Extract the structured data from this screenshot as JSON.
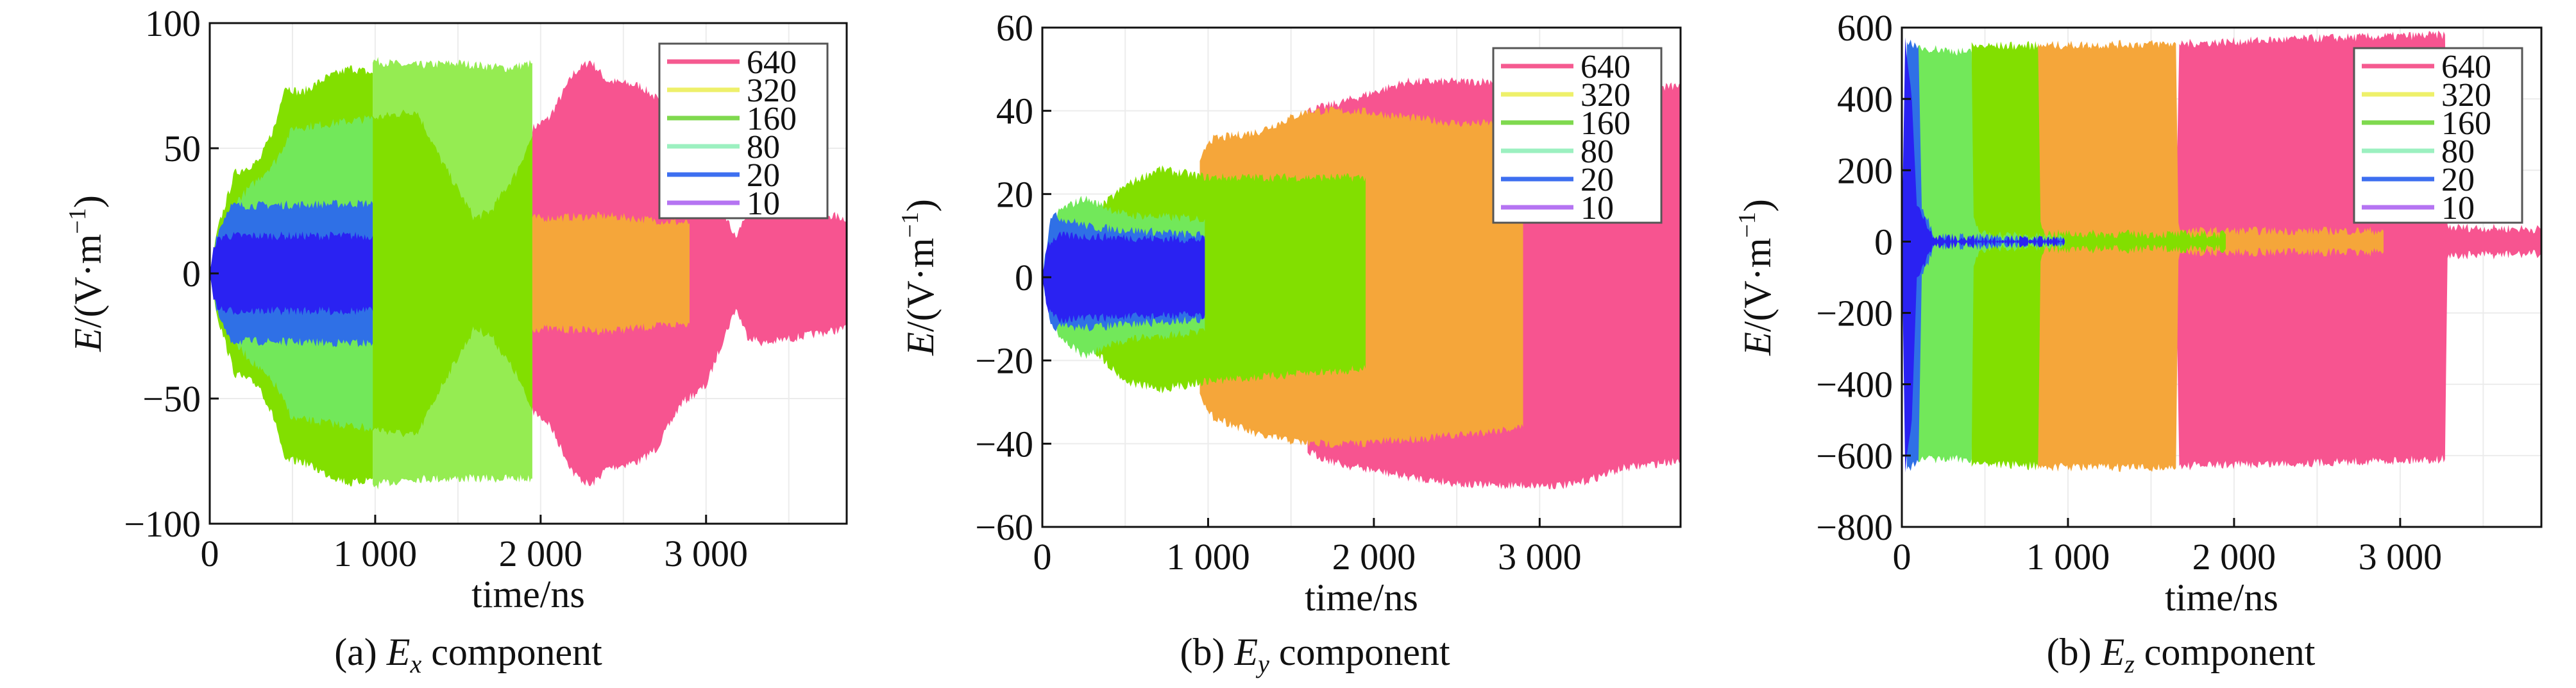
{
  "legend_labels": [
    "640",
    "320",
    "160",
    "80",
    "20",
    "10"
  ],
  "legend_colors": [
    "#f55a90",
    "#eef06a",
    "#7fd94e",
    "#9cf0c0",
    "#3d6ff0",
    "#b574f2"
  ],
  "chart_data": [
    {
      "type": "area",
      "id": "ex",
      "caption_prefix": "(a) ",
      "caption_var": "E",
      "caption_sub": "x",
      "caption_suffix": " component",
      "xlabel": "time/ns",
      "ylabel_var": "E",
      "ylabel_rest": "/(V·m",
      "ylabel_sup": "−1",
      "ylabel_close": ")",
      "xlim": [
        0,
        3850
      ],
      "ylim": [
        -100,
        100
      ],
      "xticks": [
        0,
        1000,
        2000,
        3000
      ],
      "xtick_labels": [
        "0",
        "1 000",
        "2 000",
        "3 000"
      ],
      "yticks": [
        -100,
        -50,
        0,
        50,
        100
      ],
      "ytick_labels": [
        "−100",
        "−50",
        "0",
        "50",
        "100"
      ],
      "legend_position": "top-right",
      "series": [
        {
          "name": "640",
          "color": "#f75490",
          "points": [
            [
              1950,
              58,
              -55
            ],
            [
              2050,
              62,
              -60
            ],
            [
              2200,
              80,
              -80
            ],
            [
              2300,
              85,
              -85
            ],
            [
              2400,
              77,
              -78
            ],
            [
              2600,
              75,
              -75
            ],
            [
              2700,
              70,
              -70
            ],
            [
              2850,
              50,
              -52
            ],
            [
              3000,
              45,
              -45
            ],
            [
              3100,
              25,
              -27
            ],
            [
              3180,
              14,
              -14
            ],
            [
              3250,
              25,
              -25
            ],
            [
              3350,
              28,
              -28
            ],
            [
              3850,
              22,
              -22
            ]
          ]
        },
        {
          "name": "80",
          "color": "#95ec52",
          "points": [
            [
              985,
              85,
              -85
            ],
            [
              1200,
              83,
              -82
            ],
            [
              1500,
              84,
              -82
            ],
            [
              1800,
              82,
              -82
            ],
            [
              1950,
              84,
              -82
            ]
          ]
        },
        {
          "name": "160",
          "color": "#82df00",
          "points": [
            [
              0,
              0,
              0
            ],
            [
              50,
              18,
              -18
            ],
            [
              150,
              40,
              -40
            ],
            [
              300,
              45,
              -45
            ],
            [
              400,
              60,
              -60
            ],
            [
              450,
              75,
              -75
            ],
            [
              550,
              72,
              -75
            ],
            [
              700,
              78,
              -80
            ],
            [
              850,
              82,
              -84
            ],
            [
              985,
              80,
              -82
            ]
          ]
        },
        {
          "name": "160",
          "color": "#82df00",
          "points": [
            [
              985,
              62,
              -62
            ],
            [
              1250,
              65,
              -65
            ],
            [
              1400,
              45,
              -45
            ],
            [
              1600,
              22,
              -22
            ],
            [
              1700,
              25,
              -25
            ],
            [
              1850,
              40,
              -40
            ],
            [
              1950,
              55,
              -55
            ]
          ]
        },
        {
          "name": "320",
          "color": "#f5a63a",
          "points": [
            [
              1950,
              22,
              -22
            ],
            [
              2400,
              23,
              -23
            ],
            [
              2900,
              20,
              -20
            ]
          ]
        },
        {
          "name": "80",
          "color": "#72e85a",
          "points": [
            [
              0,
              0,
              0
            ],
            [
              50,
              15,
              -15
            ],
            [
              150,
              28,
              -28
            ],
            [
              400,
              45,
              -45
            ],
            [
              500,
              58,
              -58
            ],
            [
              985,
              62,
              -62
            ]
          ]
        },
        {
          "name": "20",
          "color": "#2f70e6",
          "points": [
            [
              0,
              0,
              0
            ],
            [
              40,
              15,
              -15
            ],
            [
              120,
              27,
              -27
            ],
            [
              985,
              28,
              -28
            ]
          ]
        },
        {
          "name": "10",
          "color": "#2a22f2",
          "points": [
            [
              0,
              0,
              0
            ],
            [
              30,
              12,
              -12
            ],
            [
              80,
              15,
              -15
            ],
            [
              985,
              15,
              -15
            ]
          ]
        }
      ]
    },
    {
      "type": "area",
      "id": "ey",
      "caption_prefix": "(b) ",
      "caption_var": "E",
      "caption_sub": "y",
      "caption_suffix": " component",
      "xlabel": "time/ns",
      "ylabel_var": "E",
      "ylabel_rest": "/(V·m",
      "ylabel_sup": "−1",
      "ylabel_close": ")",
      "xlim": [
        0,
        3850
      ],
      "ylim": [
        -60,
        60
      ],
      "xticks": [
        0,
        1000,
        2000,
        3000
      ],
      "xtick_labels": [
        "0",
        "1 000",
        "2 000",
        "3 000"
      ],
      "yticks": [
        -60,
        -40,
        -20,
        0,
        20,
        40,
        60
      ],
      "ytick_labels": [
        "−60",
        "−40",
        "−20",
        "0",
        "20",
        "40",
        "60"
      ],
      "legend_position": "top-right",
      "series": [
        {
          "name": "640",
          "color": "#f75490",
          "points": [
            [
              1600,
              40,
              -42
            ],
            [
              1800,
              42,
              -45
            ],
            [
              2200,
              47,
              -48
            ],
            [
              2600,
              47,
              -50
            ],
            [
              3000,
              48,
              -50
            ],
            [
              3200,
              47,
              -50
            ],
            [
              3500,
              45,
              -46
            ],
            [
              3850,
              46,
              -44
            ]
          ]
        },
        {
          "name": "320",
          "color": "#f5a63a",
          "points": [
            [
              950,
              27,
              -27
            ],
            [
              1000,
              33,
              -33
            ],
            [
              1300,
              35,
              -38
            ],
            [
              1600,
              40,
              -40
            ],
            [
              1900,
              40,
              -40
            ],
            [
              2500,
              37,
              -38
            ],
            [
              2900,
              37,
              -36
            ]
          ]
        },
        {
          "name": "160",
          "color": "#82df00",
          "points": [
            [
              0,
              0,
              0
            ],
            [
              100,
              13,
              -12
            ],
            [
              300,
              15,
              -17
            ],
            [
              500,
              22,
              -25
            ],
            [
              700,
              26,
              -27
            ],
            [
              1000,
              24,
              -25
            ],
            [
              1950,
              24,
              -22
            ]
          ]
        },
        {
          "name": "80",
          "color": "#72e85a",
          "points": [
            [
              0,
              0,
              0
            ],
            [
              100,
              16,
              -14
            ],
            [
              250,
              19,
              -19
            ],
            [
              500,
              15,
              -15
            ],
            [
              980,
              14,
              -13
            ]
          ]
        },
        {
          "name": "20",
          "color": "#2f70e6",
          "points": [
            [
              0,
              0,
              0
            ],
            [
              50,
              15,
              -12
            ],
            [
              300,
              12,
              -12
            ],
            [
              980,
              10,
              -10
            ]
          ]
        },
        {
          "name": "10",
          "color": "#2a22f2",
          "points": [
            [
              0,
              0,
              0
            ],
            [
              30,
              8,
              -8
            ],
            [
              100,
              10,
              -10
            ],
            [
              980,
              9,
              -9
            ]
          ]
        }
      ]
    },
    {
      "type": "area",
      "id": "ez",
      "caption_prefix": "(b) ",
      "caption_var": "E",
      "caption_sub": "z",
      "caption_suffix": " component",
      "xlabel": "time/ns",
      "ylabel_var": "E",
      "ylabel_rest": "/(V·m",
      "ylabel_sup": "−1",
      "ylabel_close": ")",
      "xlim": [
        0,
        3850
      ],
      "ylim": [
        -800,
        600
      ],
      "xticks": [
        0,
        1000,
        2000,
        3000
      ],
      "xtick_labels": [
        "0",
        "1 000",
        "2 000",
        "3 000"
      ],
      "yticks": [
        -800,
        -600,
        -400,
        -200,
        0,
        200,
        400,
        600
      ],
      "ytick_labels": [
        "−800",
        "−600",
        "−400",
        "−200",
        "0",
        "200",
        "400",
        "600"
      ],
      "legend_position": "top-right",
      "series": [
        {
          "name": "640",
          "color": "#f75490",
          "points": [
            [
              1650,
              45,
              -45
            ],
            [
              1670,
              555,
              -630
            ],
            [
              2500,
              570,
              -620
            ],
            [
              3270,
              580,
              -610
            ],
            [
              3285,
              40,
              -40
            ],
            [
              3850,
              35,
              -35
            ]
          ]
        },
        {
          "name": "320",
          "color": "#f5a63a",
          "points": [
            [
              820,
              550,
              -632
            ],
            [
              1650,
              555,
              -635
            ],
            [
              1665,
              45,
              -45
            ],
            [
              1700,
              30,
              -30
            ],
            [
              2900,
              30,
              -30
            ]
          ]
        },
        {
          "name": "160",
          "color": "#82df00",
          "points": [
            [
              420,
              548,
              -620
            ],
            [
              820,
              550,
              -630
            ],
            [
              835,
              50,
              -50
            ],
            [
              870,
              22,
              -22
            ],
            [
              1950,
              20,
              -20
            ]
          ]
        },
        {
          "name": "80",
          "color": "#72e85a",
          "points": [
            [
              100,
              545,
              -612
            ],
            [
              420,
              530,
              -610
            ],
            [
              432,
              60,
              -60
            ],
            [
              480,
              22,
              -22
            ],
            [
              980,
              10,
              -10
            ]
          ]
        },
        {
          "name": "20",
          "color": "#2f70e6",
          "points": [
            [
              30,
              560,
              -640
            ],
            [
              100,
              550,
              -620
            ],
            [
              120,
              100,
              -100
            ],
            [
              200,
              15,
              -15
            ],
            [
              980,
              5,
              -5
            ]
          ]
        },
        {
          "name": "10",
          "color": "#2a22f2",
          "points": [
            [
              0,
              0,
              0
            ],
            [
              20,
              570,
              -645
            ],
            [
              60,
              400,
              -500
            ],
            [
              90,
              100,
              -100
            ],
            [
              200,
              10,
              -10
            ],
            [
              980,
              3,
              -3
            ]
          ]
        }
      ]
    }
  ]
}
